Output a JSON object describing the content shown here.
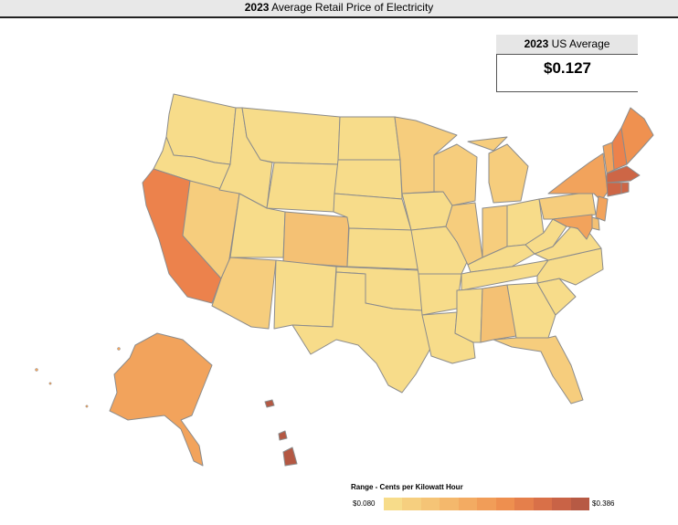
{
  "title": {
    "year": "2023",
    "rest": "Average Retail Price of Electricity"
  },
  "us_average": {
    "label_year": "2023",
    "label_rest": "US Average",
    "value": "$0.127"
  },
  "legend": {
    "title": "Range - Cents per Kilowatt Hour",
    "min": "$0.080",
    "max": "$0.386",
    "colors": [
      "#f7dc8a",
      "#f6cf7f",
      "#f5c476",
      "#f4b86c",
      "#f3ab62",
      "#f19d58",
      "#ee8f4f",
      "#e57f4b",
      "#d97048",
      "#c96346",
      "#b75a44"
    ]
  },
  "colors": {
    "c1": "#f7dc8a",
    "c2": "#f6cd7d",
    "c3": "#f4c174",
    "c4": "#f2a35c",
    "c5": "#ef9150",
    "c6": "#ec824c",
    "c7": "#cd6646",
    "c8": "#b45843"
  },
  "states": [
    {
      "abbr": "WA",
      "tier": "c1"
    },
    {
      "abbr": "OR",
      "tier": "c1"
    },
    {
      "abbr": "CA",
      "tier": "c6"
    },
    {
      "abbr": "NV",
      "tier": "c2"
    },
    {
      "abbr": "ID",
      "tier": "c1"
    },
    {
      "abbr": "MT",
      "tier": "c1"
    },
    {
      "abbr": "WY",
      "tier": "c1"
    },
    {
      "abbr": "UT",
      "tier": "c1"
    },
    {
      "abbr": "AZ",
      "tier": "c2"
    },
    {
      "abbr": "CO",
      "tier": "c3"
    },
    {
      "abbr": "NM",
      "tier": "c1"
    },
    {
      "abbr": "ND",
      "tier": "c1"
    },
    {
      "abbr": "SD",
      "tier": "c1"
    },
    {
      "abbr": "NE",
      "tier": "c1"
    },
    {
      "abbr": "KS",
      "tier": "c1"
    },
    {
      "abbr": "OK",
      "tier": "c1"
    },
    {
      "abbr": "TX",
      "tier": "c1"
    },
    {
      "abbr": "MN",
      "tier": "c2"
    },
    {
      "abbr": "IA",
      "tier": "c1"
    },
    {
      "abbr": "MO",
      "tier": "c1"
    },
    {
      "abbr": "AR",
      "tier": "c1"
    },
    {
      "abbr": "LA",
      "tier": "c1"
    },
    {
      "abbr": "WI",
      "tier": "c2"
    },
    {
      "abbr": "IL",
      "tier": "c2"
    },
    {
      "abbr": "MI",
      "tier": "c2"
    },
    {
      "abbr": "IN",
      "tier": "c2"
    },
    {
      "abbr": "OH",
      "tier": "c1"
    },
    {
      "abbr": "KY",
      "tier": "c1"
    },
    {
      "abbr": "TN",
      "tier": "c1"
    },
    {
      "abbr": "MS",
      "tier": "c1"
    },
    {
      "abbr": "AL",
      "tier": "c3"
    },
    {
      "abbr": "GA",
      "tier": "c1"
    },
    {
      "abbr": "FL",
      "tier": "c2"
    },
    {
      "abbr": "SC",
      "tier": "c1"
    },
    {
      "abbr": "NC",
      "tier": "c1"
    },
    {
      "abbr": "VA",
      "tier": "c1"
    },
    {
      "abbr": "WV",
      "tier": "c1"
    },
    {
      "abbr": "PA",
      "tier": "c2"
    },
    {
      "abbr": "NY",
      "tier": "c4"
    },
    {
      "abbr": "VT",
      "tier": "c4"
    },
    {
      "abbr": "NH",
      "tier": "c6"
    },
    {
      "abbr": "ME",
      "tier": "c5"
    },
    {
      "abbr": "MA",
      "tier": "c7"
    },
    {
      "abbr": "RI",
      "tier": "c7"
    },
    {
      "abbr": "CT",
      "tier": "c7"
    },
    {
      "abbr": "NJ",
      "tier": "c4"
    },
    {
      "abbr": "DE",
      "tier": "c3"
    },
    {
      "abbr": "MD",
      "tier": "c4"
    },
    {
      "abbr": "AK",
      "tier": "c4"
    },
    {
      "abbr": "HI",
      "tier": "c8"
    }
  ]
}
